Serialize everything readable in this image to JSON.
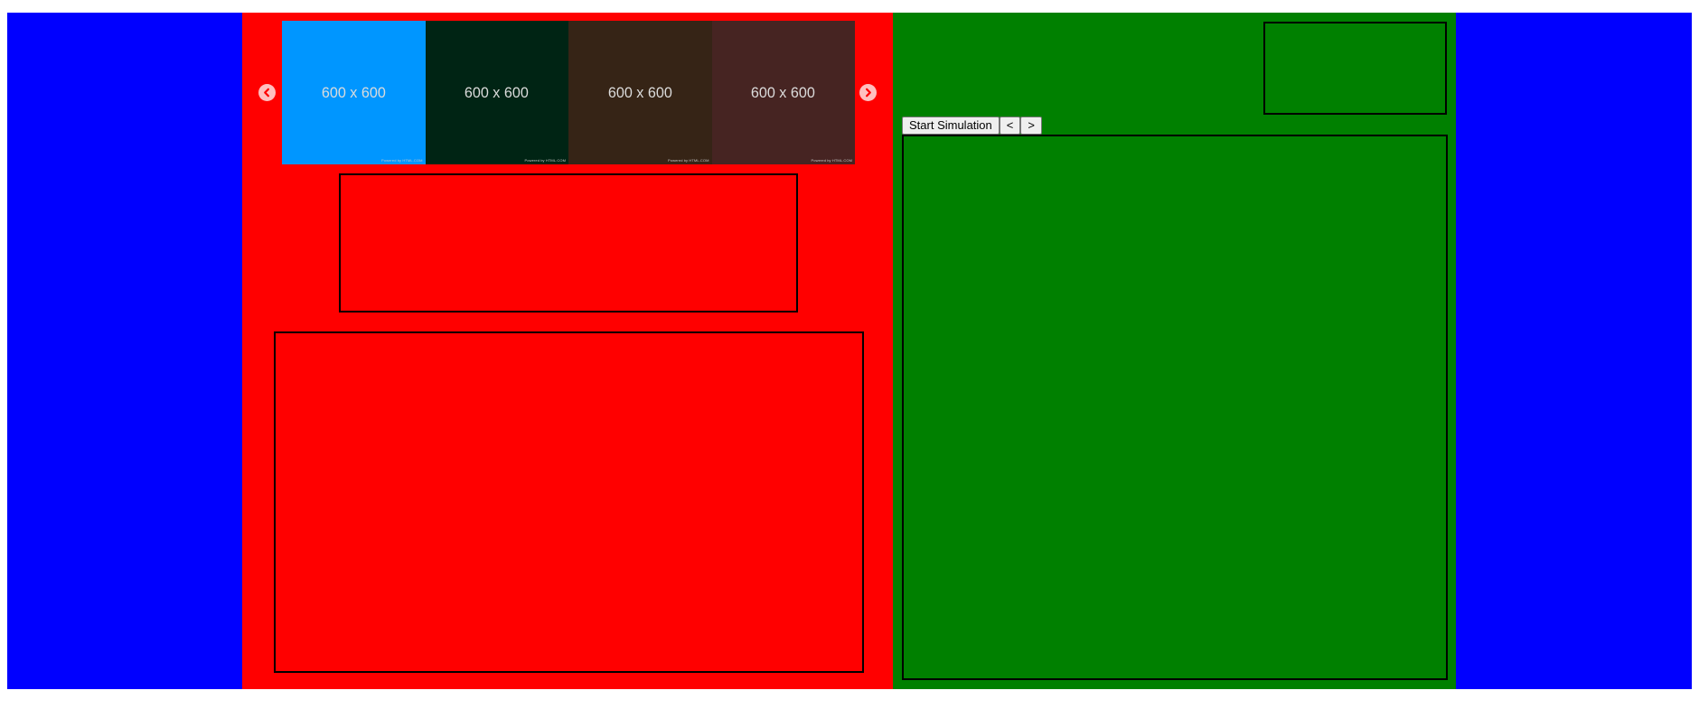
{
  "carousel": {
    "slides": [
      {
        "caption": "600 x 600",
        "credit": "Powered by HTML.COM",
        "color": "#0096ff"
      },
      {
        "caption": "600 x 600",
        "credit": "Powered by HTML.COM",
        "color": "#002414"
      },
      {
        "caption": "600 x 600",
        "credit": "Powered by HTML.COM",
        "color": "#362416"
      },
      {
        "caption": "600 x 600",
        "credit": "Powered by HTML.COM",
        "color": "#462422"
      }
    ],
    "prev_icon": "chevron-left-circle-icon",
    "next_icon": "chevron-right-circle-icon"
  },
  "simulation": {
    "start_label": "Start Simulation",
    "prev_label": "<",
    "next_label": ">"
  },
  "colors": {
    "side_columns": "#0000ff",
    "left_panel": "#ff0000",
    "right_panel": "#008000"
  }
}
